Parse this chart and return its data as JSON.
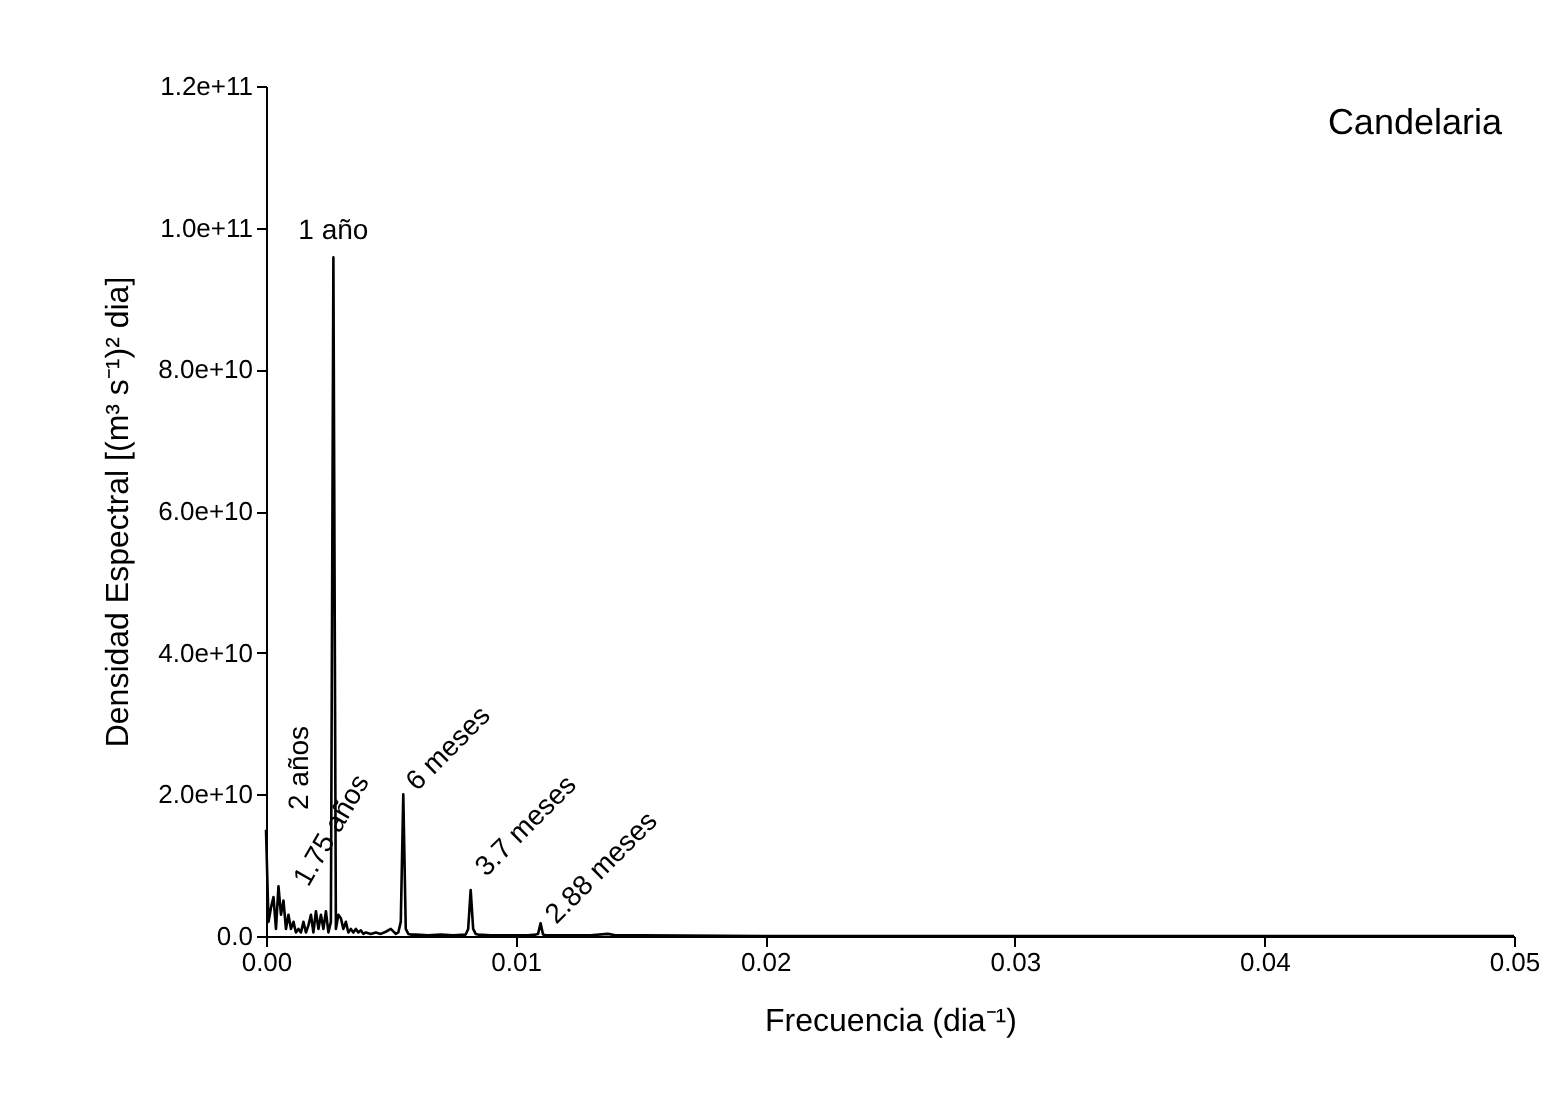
{
  "chart_data": {
    "type": "line",
    "xlabel": "Frecuencia (dia⁻¹)",
    "ylabel": "Densidad Espectral [(m³ s⁻¹)² dia]",
    "x": [
      0,
      0.0001,
      0.0002,
      0.0003,
      0.0004,
      0.0005,
      0.0006,
      0.0007,
      0.0008,
      0.0009,
      0.001,
      0.0011,
      0.0012,
      0.0013,
      0.0014,
      0.0015,
      0.0016,
      0.0017,
      0.0018,
      0.0019,
      0.002,
      0.0021,
      0.0022,
      0.0023,
      0.0024,
      0.0025,
      0.0026,
      0.0027,
      0.0028,
      0.0029,
      0.003,
      0.0031,
      0.0032,
      0.0033,
      0.0034,
      0.0035,
      0.0036,
      0.0037,
      0.0038,
      0.0039,
      0.004,
      0.0042,
      0.0044,
      0.0046,
      0.0048,
      0.005,
      0.0052,
      0.0053,
      0.0054,
      0.0055,
      0.0056,
      0.0057,
      0.0058,
      0.006,
      0.0065,
      0.007,
      0.0075,
      0.008,
      0.0081,
      0.0082,
      0.0083,
      0.0084,
      0.0085,
      0.009,
      0.0095,
      0.01,
      0.0105,
      0.0108,
      0.0109,
      0.011,
      0.0111,
      0.0112,
      0.012,
      0.013,
      0.0137,
      0.014,
      0.015,
      0.02,
      0.03,
      0.04,
      0.05
    ],
    "series": [
      {
        "color": "#000000",
        "values": [
          15000000000.0,
          2000000000.0,
          4000000000.0,
          5500000000.0,
          1000000000.0,
          7000000000.0,
          3000000000.0,
          5000000000.0,
          1000000000.0,
          3000000000.0,
          1000000000.0,
          2000000000.0,
          500000000.0,
          1000000000.0,
          500000000.0,
          2000000000.0,
          500000000.0,
          1500000000.0,
          3000000000.0,
          500000000.0,
          3500000000.0,
          1000000000.0,
          3000000000.0,
          1000000000.0,
          3500000000.0,
          500000000.0,
          2000000000.0,
          95800000000.0,
          1000000000.0,
          3000000000.0,
          2500000000.0,
          1000000000.0,
          2000000000.0,
          500000000.0,
          1000000000.0,
          500000000.0,
          1000000000.0,
          500000000.0,
          800000000.0,
          300000000.0,
          500000000.0,
          300000000.0,
          500000000.0,
          300000000.0,
          600000000.0,
          1000000000.0,
          300000000.0,
          500000000.0,
          2000000000.0,
          20000000000.0,
          1000000000.0,
          300000000.0,
          200000000.0,
          200000000.0,
          100000000.0,
          200000000.0,
          100000000.0,
          200000000.0,
          1000000000.0,
          6500000000.0,
          1000000000.0,
          300000000.0,
          200000000.0,
          100000000.0,
          100000000.0,
          100000000.0,
          100000000.0,
          200000000.0,
          300000000.0,
          1800000000.0,
          200000000.0,
          100000000.0,
          100000000.0,
          100000000.0,
          300000000.0,
          100000000.0,
          100000000.0,
          0,
          0,
          0,
          0
        ]
      }
    ],
    "xlim": [
      0,
      0.05
    ],
    "xticks": [
      {
        "value": 0,
        "label": "0.00"
      },
      {
        "value": 0.01,
        "label": "0.01"
      },
      {
        "value": 0.02,
        "label": "0.02"
      },
      {
        "value": 0.03,
        "label": "0.03"
      },
      {
        "value": 0.04,
        "label": "0.04"
      },
      {
        "value": 0.05,
        "label": "0.05"
      }
    ],
    "ylim": [
      0,
      120000000000.0
    ],
    "yticks": [
      {
        "value": 0,
        "label": "0.0"
      },
      {
        "value": 20000000000.0,
        "label": "2.0e+10"
      },
      {
        "value": 40000000000.0,
        "label": "4.0e+10"
      },
      {
        "value": 60000000000.0,
        "label": "6.0e+10"
      },
      {
        "value": 80000000000.0,
        "label": "8.0e+10"
      },
      {
        "value": 100000000000.0,
        "label": "1.0e+11"
      },
      {
        "value": 120000000000.0,
        "label": "1.2e+11"
      }
    ],
    "annotations": [
      "Candelaria",
      {
        "text": "1 año",
        "x": 0.0027,
        "y": 95800000000.0
      },
      "2 años",
      {
        "text": "1.75 años",
        "x": 0.0015,
        "y": 2000000000.0
      },
      {
        "text": "6 meses",
        "x": 0.0055,
        "y": 20000000000.0
      },
      {
        "text": "3.7 meses",
        "x": 0.0082,
        "y": 6500000000.0
      },
      {
        "text": "2.88 meses",
        "x": 0.011,
        "y": 1800000000.0
      }
    ],
    "grid": false,
    "legend": false,
    "marker": "none",
    "line_style": "solid"
  }
}
